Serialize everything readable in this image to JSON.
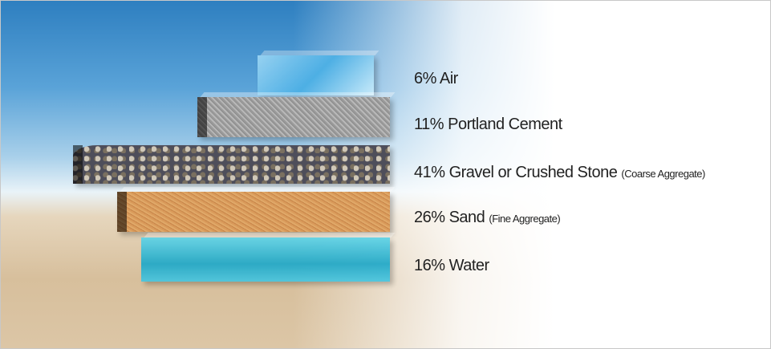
{
  "items": [
    {
      "percent": "6%",
      "label": "Air"
    },
    {
      "percent": "11%",
      "label": "Portland Cement"
    },
    {
      "percent": "41%",
      "label": "Gravel or Crushed Stone",
      "note": "(Coarse Aggregate)"
    },
    {
      "percent": "26%",
      "label": "Sand",
      "note": "(Fine Aggregate)"
    },
    {
      "percent": "16%",
      "label": "Water"
    }
  ]
}
